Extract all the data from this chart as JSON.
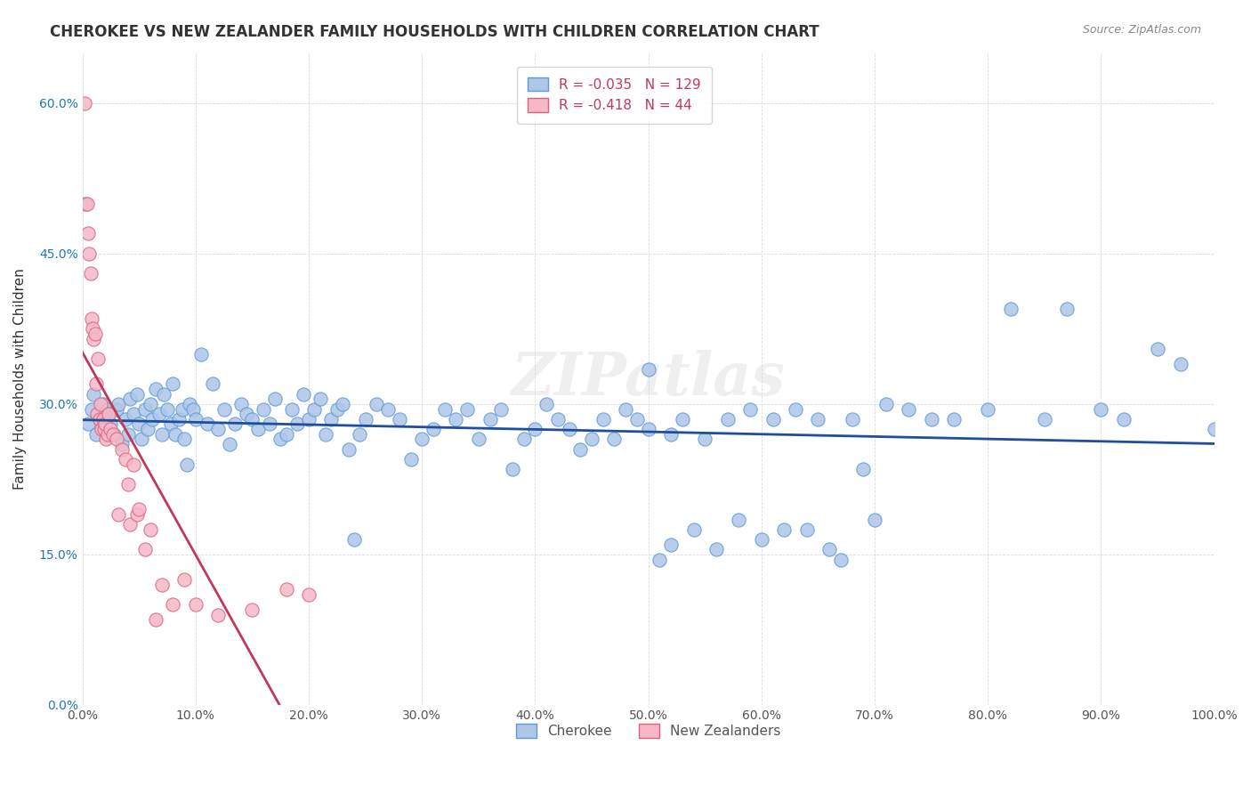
{
  "title": "CHEROKEE VS NEW ZEALANDER FAMILY HOUSEHOLDS WITH CHILDREN CORRELATION CHART",
  "source": "Source: ZipAtlas.com",
  "xlabel": "",
  "ylabel": "Family Households with Children",
  "xlim": [
    0.0,
    1.0
  ],
  "ylim": [
    0.0,
    0.65
  ],
  "xticks": [
    0.0,
    0.1,
    0.2,
    0.3,
    0.4,
    0.5,
    0.6,
    0.7,
    0.8,
    0.9,
    1.0
  ],
  "xticklabels": [
    "0.0%",
    "10.0%",
    "20.0%",
    "30.0%",
    "40.0%",
    "50.0%",
    "60.0%",
    "70.0%",
    "80.0%",
    "90.0%",
    "100.0%"
  ],
  "yticks": [
    0.0,
    0.15,
    0.3,
    0.45,
    0.6
  ],
  "yticklabels": [
    "0.0%",
    "15.0%",
    "30.0%",
    "45.0%",
    "60.0%"
  ],
  "cherokee_color": "#aec6e8",
  "cherokee_edge_color": "#5b9bd5",
  "new_zealander_color": "#f4b8c8",
  "new_zealander_edge_color": "#e06080",
  "trend_cherokee_color": "#1f4e9c",
  "trend_nz_color": "#c0395a",
  "trend_nz_dash_color": "#c0c0c0",
  "R_cherokee": -0.035,
  "N_cherokee": 129,
  "R_nz": -0.418,
  "N_nz": 44,
  "watermark": "ZIPatlas",
  "cherokee_x": [
    0.005,
    0.008,
    0.01,
    0.012,
    0.015,
    0.018,
    0.02,
    0.022,
    0.025,
    0.028,
    0.03,
    0.032,
    0.035,
    0.038,
    0.04,
    0.042,
    0.045,
    0.048,
    0.05,
    0.052,
    0.055,
    0.058,
    0.06,
    0.062,
    0.065,
    0.068,
    0.07,
    0.072,
    0.075,
    0.078,
    0.08,
    0.082,
    0.085,
    0.088,
    0.09,
    0.092,
    0.095,
    0.098,
    0.1,
    0.105,
    0.11,
    0.115,
    0.12,
    0.125,
    0.13,
    0.135,
    0.14,
    0.145,
    0.15,
    0.155,
    0.16,
    0.165,
    0.17,
    0.175,
    0.18,
    0.185,
    0.19,
    0.195,
    0.2,
    0.205,
    0.21,
    0.215,
    0.22,
    0.225,
    0.23,
    0.235,
    0.24,
    0.245,
    0.25,
    0.26,
    0.27,
    0.28,
    0.29,
    0.3,
    0.31,
    0.32,
    0.33,
    0.34,
    0.35,
    0.36,
    0.37,
    0.38,
    0.39,
    0.4,
    0.41,
    0.42,
    0.43,
    0.44,
    0.45,
    0.46,
    0.47,
    0.48,
    0.49,
    0.5,
    0.51,
    0.52,
    0.53,
    0.54,
    0.55,
    0.56,
    0.57,
    0.58,
    0.59,
    0.6,
    0.61,
    0.62,
    0.63,
    0.64,
    0.65,
    0.66,
    0.67,
    0.68,
    0.69,
    0.7,
    0.71,
    0.73,
    0.75,
    0.77,
    0.8,
    0.82,
    0.85,
    0.87,
    0.9,
    0.92,
    0.95,
    0.97,
    1.0,
    0.5,
    0.52
  ],
  "cherokee_y": [
    0.28,
    0.295,
    0.31,
    0.27,
    0.285,
    0.3,
    0.29,
    0.295,
    0.28,
    0.27,
    0.295,
    0.3,
    0.26,
    0.285,
    0.27,
    0.305,
    0.29,
    0.31,
    0.28,
    0.265,
    0.295,
    0.275,
    0.3,
    0.285,
    0.315,
    0.29,
    0.27,
    0.31,
    0.295,
    0.28,
    0.32,
    0.27,
    0.285,
    0.295,
    0.265,
    0.24,
    0.3,
    0.295,
    0.285,
    0.35,
    0.28,
    0.32,
    0.275,
    0.295,
    0.26,
    0.28,
    0.3,
    0.29,
    0.285,
    0.275,
    0.295,
    0.28,
    0.305,
    0.265,
    0.27,
    0.295,
    0.28,
    0.31,
    0.285,
    0.295,
    0.305,
    0.27,
    0.285,
    0.295,
    0.3,
    0.255,
    0.165,
    0.27,
    0.285,
    0.3,
    0.295,
    0.285,
    0.245,
    0.265,
    0.275,
    0.295,
    0.285,
    0.295,
    0.265,
    0.285,
    0.295,
    0.235,
    0.265,
    0.275,
    0.3,
    0.285,
    0.275,
    0.255,
    0.265,
    0.285,
    0.265,
    0.295,
    0.285,
    0.275,
    0.145,
    0.16,
    0.285,
    0.175,
    0.265,
    0.155,
    0.285,
    0.185,
    0.295,
    0.165,
    0.285,
    0.175,
    0.295,
    0.175,
    0.285,
    0.155,
    0.145,
    0.285,
    0.235,
    0.185,
    0.3,
    0.295,
    0.285,
    0.285,
    0.295,
    0.395,
    0.285,
    0.395,
    0.295,
    0.285,
    0.355,
    0.34,
    0.275,
    0.335,
    0.27
  ],
  "nz_x": [
    0.002,
    0.003,
    0.004,
    0.005,
    0.006,
    0.007,
    0.008,
    0.009,
    0.01,
    0.011,
    0.012,
    0.013,
    0.014,
    0.015,
    0.016,
    0.017,
    0.018,
    0.019,
    0.02,
    0.021,
    0.022,
    0.023,
    0.025,
    0.027,
    0.03,
    0.032,
    0.035,
    0.038,
    0.04,
    0.042,
    0.045,
    0.048,
    0.05,
    0.055,
    0.06,
    0.065,
    0.07,
    0.08,
    0.09,
    0.1,
    0.12,
    0.15,
    0.18,
    0.2
  ],
  "nz_y": [
    0.6,
    0.5,
    0.5,
    0.47,
    0.45,
    0.43,
    0.385,
    0.375,
    0.365,
    0.37,
    0.32,
    0.29,
    0.345,
    0.285,
    0.3,
    0.275,
    0.285,
    0.275,
    0.28,
    0.265,
    0.27,
    0.29,
    0.275,
    0.27,
    0.265,
    0.19,
    0.255,
    0.245,
    0.22,
    0.18,
    0.24,
    0.19,
    0.195,
    0.155,
    0.175,
    0.085,
    0.12,
    0.1,
    0.125,
    0.1,
    0.09,
    0.095,
    0.115,
    0.11
  ]
}
